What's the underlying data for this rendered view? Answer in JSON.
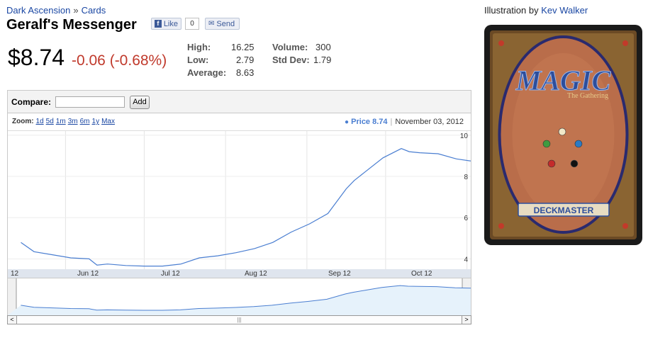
{
  "breadcrumb": {
    "set": "Dark Ascension",
    "separator": "»",
    "section": "Cards"
  },
  "card": {
    "name": "Geralf's Messenger"
  },
  "social": {
    "like_label": "Like",
    "like_icon_glyph": "f",
    "like_count": "0",
    "send_label": "Send",
    "send_icon_glyph": "✉"
  },
  "price": {
    "current": "$8.74",
    "change": "-0.06 (-0.68%)",
    "change_color": "#c0392b"
  },
  "stats": {
    "high_label": "High:",
    "high": "16.25",
    "low_label": "Low:",
    "low": "2.79",
    "average_label": "Average:",
    "average": "8.63",
    "volume_label": "Volume:",
    "volume": "300",
    "stddev_label": "Std Dev:",
    "stddev": "1.79"
  },
  "compare": {
    "label": "Compare:",
    "input_value": "",
    "add_label": "Add"
  },
  "zoom": {
    "label": "Zoom:",
    "options": [
      "1d",
      "5d",
      "1m",
      "3m",
      "6m",
      "1y",
      "Max"
    ]
  },
  "readout": {
    "dot": "●",
    "series_label": "Price 8.74",
    "date": "November 03, 2012"
  },
  "scrollbar": {
    "left_arrow": "<",
    "right_arrow": ">",
    "thumb_grip": "|||"
  },
  "illustration": {
    "label": "Illustration by",
    "artist": "Kev Walker"
  },
  "card_back": {
    "logo_text": "MAGIC",
    "tagline": "The Gathering",
    "banner": "DECKMASTER"
  },
  "colors": {
    "line": "#4a7ed1",
    "fill": "#e6f2fb",
    "link": "#1a47a3",
    "accent_red": "#c0392b"
  },
  "chart_data": {
    "type": "line",
    "x_ticks": [
      "12",
      "Jun 12",
      "Jul 12",
      "Aug 12",
      "Sep 12",
      "Oct 12"
    ],
    "y_ticks": [
      "4",
      "6",
      "8",
      "10"
    ],
    "ylim": [
      3.5,
      10.2
    ],
    "series": [
      {
        "name": "Price",
        "x": [
          "2012-05-15",
          "2012-05-20",
          "2012-05-27",
          "2012-06-03",
          "2012-06-10",
          "2012-06-13",
          "2012-06-17",
          "2012-06-24",
          "2012-07-01",
          "2012-07-08",
          "2012-07-15",
          "2012-07-22",
          "2012-07-29",
          "2012-08-05",
          "2012-08-12",
          "2012-08-19",
          "2012-08-26",
          "2012-09-02",
          "2012-09-09",
          "2012-09-16",
          "2012-09-19",
          "2012-09-23",
          "2012-09-30",
          "2012-10-07",
          "2012-10-10",
          "2012-10-14",
          "2012-10-21",
          "2012-10-28",
          "2012-11-03"
        ],
        "values": [
          4.8,
          4.35,
          4.2,
          4.05,
          4.0,
          3.7,
          3.75,
          3.68,
          3.65,
          3.65,
          3.75,
          4.05,
          4.15,
          4.3,
          4.5,
          4.8,
          5.3,
          5.7,
          6.2,
          7.4,
          7.8,
          8.2,
          8.9,
          9.35,
          9.2,
          9.15,
          9.1,
          8.85,
          8.74
        ]
      }
    ]
  }
}
